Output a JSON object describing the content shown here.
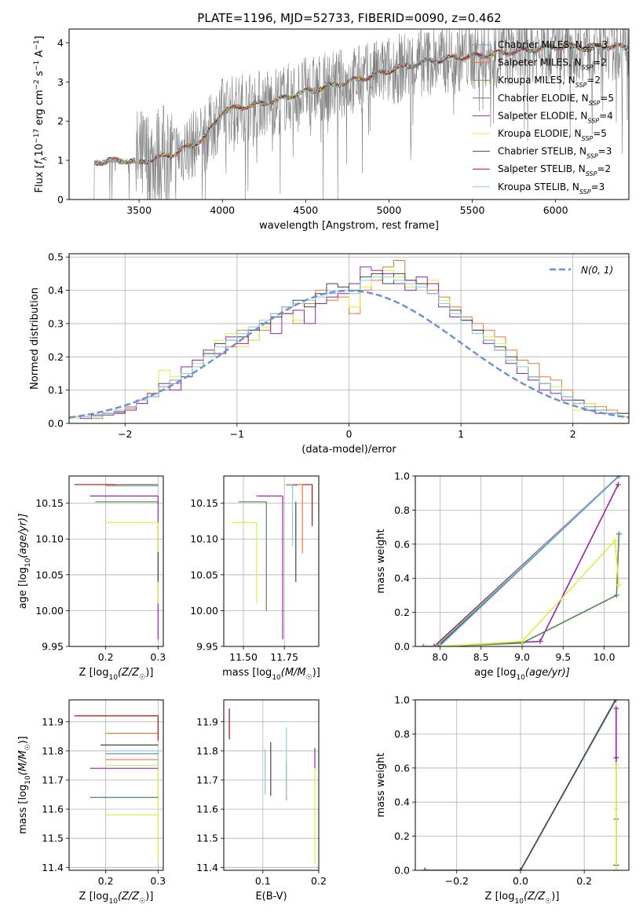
{
  "figure_title": "PLATE=1196, MJD=52733, FIBERID=0090, z=0.462",
  "colors": {
    "Chabrier MILES": "#6699cc",
    "Salpeter MILES": "#ee7733",
    "Kroupa MILES": "#aa8822",
    "Chabrier ELODIE": "#558855",
    "Salpeter ELODIE": "#9922aa",
    "Kroupa ELODIE": "#ddee44",
    "Chabrier STELIB": "#444444",
    "Salpeter STELIB": "#aa1111",
    "Kroupa STELIB": "#88ccdd",
    "data": "#7f7f7f",
    "normal": "#6a8fd8"
  },
  "chart_data": [
    {
      "id": "spectrum",
      "type": "line",
      "xlabel": "wavelength [Angstrom, rest frame]",
      "ylabel_parts": [
        "Flux [",
        "f",
        "λ",
        "10",
        "−17",
        " erg cm",
        "−2",
        " s",
        "−1",
        " A",
        "−1",
        "]"
      ],
      "xlim": [
        3080,
        6440
      ],
      "ylim": [
        0,
        4.35
      ],
      "xticks": [
        3500,
        4000,
        4500,
        5000,
        5500,
        6000
      ],
      "yticks": [
        0,
        1,
        2,
        3,
        4
      ],
      "continuum": {
        "x": [
          3230,
          3400,
          3500,
          3600,
          3700,
          3800,
          3900,
          4000,
          4100,
          4300,
          4500,
          4700,
          4900,
          5000,
          5200,
          5400,
          5600,
          5800,
          6000,
          6200
        ],
        "y": [
          0.95,
          1.0,
          0.95,
          1.05,
          1.15,
          1.35,
          1.6,
          2.25,
          2.35,
          2.5,
          2.75,
          2.95,
          3.15,
          3.3,
          3.5,
          3.62,
          3.7,
          3.8,
          3.9,
          3.9
        ]
      },
      "data_start": 3210,
      "series": [
        {
          "name": "Chabrier MILES",
          "nssp": "3"
        },
        {
          "name": "Salpeter MILES",
          "nssp": "2"
        },
        {
          "name": "Kroupa MILES",
          "nssp": "2"
        },
        {
          "name": "Chabrier ELODIE",
          "nssp": "5"
        },
        {
          "name": "Salpeter ELODIE",
          "nssp": "4"
        },
        {
          "name": "Kroupa ELODIE",
          "nssp": "5"
        },
        {
          "name": "Chabrier STELIB",
          "nssp": "3"
        },
        {
          "name": "Salpeter STELIB",
          "nssp": "2"
        },
        {
          "name": "Kroupa STELIB",
          "nssp": "3"
        }
      ],
      "legend": "upper right"
    },
    {
      "id": "residuals",
      "type": "line",
      "xlabel": "(data-model)/error",
      "ylabel": "Normed distribution",
      "xlim": [
        -2.5,
        2.5
      ],
      "ylim": [
        0,
        0.51
      ],
      "xticks": [
        -2,
        -1,
        0,
        1,
        2
      ],
      "yticks": [
        0.0,
        0.1,
        0.2,
        0.3,
        0.4,
        0.5
      ],
      "bin_width": 0.1,
      "legend_label": "N(0, 1)",
      "legend": "upper right",
      "histograms": [
        {
          "model": "Salpeter MILES",
          "values": [
            0.02,
            0.02,
            0.015,
            0.03,
            0.03,
            0.045,
            0.06,
            0.08,
            0.1,
            0.12,
            0.15,
            0.17,
            0.2,
            0.21,
            0.23,
            0.28,
            0.25,
            0.28,
            0.33,
            0.33,
            0.3,
            0.36,
            0.4,
            0.37,
            0.38,
            0.33,
            0.4,
            0.43,
            0.47,
            0.49,
            0.43,
            0.42,
            0.4,
            0.38,
            0.35,
            0.32,
            0.3,
            0.28,
            0.26,
            0.22,
            0.19,
            0.18,
            0.14,
            0.13,
            0.1,
            0.07,
            0.06,
            0.05,
            0.04,
            0.03
          ]
        },
        {
          "model": "Kroupa ELODIE",
          "values": [
            0.015,
            0.025,
            0.02,
            0.03,
            0.04,
            0.05,
            0.07,
            0.1,
            0.16,
            0.14,
            0.15,
            0.18,
            0.2,
            0.25,
            0.27,
            0.23,
            0.25,
            0.29,
            0.32,
            0.34,
            0.31,
            0.37,
            0.38,
            0.39,
            0.4,
            0.35,
            0.41,
            0.45,
            0.46,
            0.44,
            0.41,
            0.42,
            0.43,
            0.37,
            0.34,
            0.3,
            0.27,
            0.26,
            0.24,
            0.2,
            0.17,
            0.13,
            0.12,
            0.11,
            0.08,
            0.04,
            0.06,
            0.04,
            0.03,
            0.02
          ]
        },
        {
          "model": "Salpeter ELODIE",
          "values": [
            0.02,
            0.015,
            0.02,
            0.025,
            0.03,
            0.04,
            0.06,
            0.09,
            0.12,
            0.1,
            0.17,
            0.19,
            0.22,
            0.21,
            0.26,
            0.24,
            0.28,
            0.3,
            0.27,
            0.33,
            0.34,
            0.3,
            0.36,
            0.38,
            0.39,
            0.42,
            0.47,
            0.46,
            0.45,
            0.42,
            0.4,
            0.44,
            0.42,
            0.35,
            0.32,
            0.31,
            0.28,
            0.24,
            0.22,
            0.18,
            0.15,
            0.13,
            0.1,
            0.09,
            0.07,
            0.06,
            0.04,
            0.03,
            0.03,
            0.02
          ]
        },
        {
          "model": "Chabrier STELIB",
          "values": [
            0.02,
            0.02,
            0.025,
            0.03,
            0.035,
            0.05,
            0.07,
            0.08,
            0.11,
            0.13,
            0.14,
            0.17,
            0.21,
            0.24,
            0.25,
            0.26,
            0.28,
            0.3,
            0.32,
            0.35,
            0.37,
            0.35,
            0.39,
            0.42,
            0.41,
            0.4,
            0.44,
            0.45,
            0.42,
            0.45,
            0.43,
            0.42,
            0.39,
            0.36,
            0.34,
            0.31,
            0.28,
            0.25,
            0.23,
            0.2,
            0.17,
            0.14,
            0.12,
            0.1,
            0.08,
            0.07,
            0.05,
            0.04,
            0.03,
            0.03
          ]
        },
        {
          "model": "Kroupa STELIB",
          "values": [
            0.02,
            0.02,
            0.02,
            0.03,
            0.04,
            0.05,
            0.07,
            0.08,
            0.11,
            0.13,
            0.15,
            0.17,
            0.2,
            0.23,
            0.25,
            0.27,
            0.29,
            0.31,
            0.33,
            0.35,
            0.36,
            0.37,
            0.38,
            0.39,
            0.4,
            0.39,
            0.43,
            0.44,
            0.44,
            0.43,
            0.42,
            0.41,
            0.39,
            0.36,
            0.33,
            0.3,
            0.27,
            0.25,
            0.22,
            0.19,
            0.17,
            0.14,
            0.12,
            0.1,
            0.08,
            0.06,
            0.05,
            0.04,
            0.03,
            0.02
          ]
        }
      ]
    },
    {
      "id": "age-vs-Z",
      "type": "scatter",
      "xlabel_parts": [
        "Z [log",
        "10",
        "(Z/Z",
        "☉",
        ")]"
      ],
      "ylabel_parts": [
        "age  [log",
        "10",
        "(age/yr)]"
      ],
      "xlim": [
        0.13,
        0.31
      ],
      "ylim": [
        9.95,
        10.188
      ],
      "xticks": [
        0.2,
        0.3
      ],
      "yticks": [
        9.95,
        10.0,
        10.05,
        10.1,
        10.15
      ],
      "points": [
        {
          "model": "Salpeter STELIB",
          "x": 0.3,
          "y": 10.176,
          "xlow": 0.14,
          "ylow": 10.176
        },
        {
          "model": "Chabrier MILES",
          "x": 0.3,
          "y": 10.176,
          "xlow": 0.22,
          "ylow": 10.176
        },
        {
          "model": "Salpeter MILES",
          "x": 0.3,
          "y": 10.175,
          "xlow": 0.2,
          "ylow": 10.175
        },
        {
          "model": "Kroupa STELIB",
          "x": 0.3,
          "y": 10.174,
          "xlow": 0.2,
          "ylow": 10.174
        },
        {
          "model": "Salpeter ELODIE",
          "x": 0.3,
          "y": 10.16,
          "xlow": 0.17,
          "ylow": 9.96
        },
        {
          "model": "Chabrier ELODIE",
          "x": 0.3,
          "y": 10.152,
          "xlow": 0.18,
          "ylow": 10.152
        },
        {
          "model": "Kroupa ELODIE",
          "x": 0.3,
          "y": 10.123,
          "xlow": 0.2,
          "ylow": 10.01
        },
        {
          "model": "Chabrier STELIB",
          "x": 0.3,
          "y": 10.082,
          "xlow": 0.3,
          "ylow": 10.04
        }
      ]
    },
    {
      "id": "age-vs-mass",
      "type": "scatter",
      "xlabel_parts": [
        "mass [log",
        "10",
        "(M/M",
        "☉",
        ")]"
      ],
      "xlim": [
        11.38,
        11.96
      ],
      "ylim": [
        9.95,
        10.188
      ],
      "xticks": [
        11.5,
        11.75
      ],
      "yticks": [
        9.95,
        10.0,
        10.05,
        10.1,
        10.15
      ],
      "points": [
        {
          "model": "Salpeter STELIB",
          "x": 11.92,
          "y": 10.176,
          "xlow": 11.8,
          "ylow": 10.118
        },
        {
          "model": "Kroupa MILES",
          "x": 11.74,
          "y": 10.176,
          "xlow": 11.74,
          "ylow": 10.176
        },
        {
          "model": "Salpeter MILES",
          "x": 11.86,
          "y": 10.176,
          "xlow": 11.76,
          "ylow": 10.08
        },
        {
          "model": "Chabrier MILES",
          "x": 11.83,
          "y": 10.175,
          "xlow": 11.76,
          "ylow": 10.176
        },
        {
          "model": "Kroupa STELIB",
          "x": 11.8,
          "y": 10.175,
          "xlow": 11.76,
          "ylow": 10.09
        },
        {
          "model": "Salpeter ELODIE",
          "x": 11.74,
          "y": 10.16,
          "xlow": 11.58,
          "ylow": 9.96
        },
        {
          "model": "Chabrier ELODIE",
          "x": 11.64,
          "y": 10.152,
          "xlow": 11.47,
          "ylow": 10.0
        },
        {
          "model": "Chabrier STELIB",
          "x": 11.82,
          "y": 10.152,
          "xlow": 11.82,
          "ylow": 10.04
        },
        {
          "model": "Kroupa ELODIE",
          "x": 11.58,
          "y": 10.123,
          "xlow": 11.43,
          "ylow": 10.01
        }
      ]
    },
    {
      "id": "mass-weight-vs-age",
      "type": "line",
      "xlabel_parts": [
        "age  [log",
        "10",
        "(age/yr)]"
      ],
      "ylabel": "mass weight",
      "xlim": [
        7.7,
        10.3
      ],
      "ylim": [
        0.0,
        1.0
      ],
      "xticks": [
        8.0,
        8.5,
        9.0,
        9.5,
        10.0
      ],
      "yticks": [
        0.0,
        0.2,
        0.4,
        0.6,
        0.8,
        1.0
      ],
      "series": [
        {
          "model": "Salpeter STELIB",
          "x": [
            7.93,
            10.18
          ],
          "y": [
            0.0,
            1.0
          ]
        },
        {
          "model": "Chabrier STELIB",
          "x": [
            7.8,
            7.97,
            10.18
          ],
          "y": [
            0.0,
            0.0,
            1.0
          ]
        },
        {
          "model": "Kroupa STELIB",
          "x": [
            7.8,
            7.95,
            10.18
          ],
          "y": [
            0.0,
            0.0,
            1.0
          ]
        },
        {
          "model": "Chabrier MILES",
          "x": [
            7.8,
            7.99,
            10.18
          ],
          "y": [
            0.0,
            0.0,
            1.0
          ]
        },
        {
          "model": "Salpeter ELODIE",
          "x": [
            8.0,
            9.22,
            10.17
          ],
          "y": [
            0.0,
            0.03,
            0.95
          ]
        },
        {
          "model": "Chabrier ELODIE",
          "x": [
            8.0,
            9.0,
            10.15,
            10.18
          ],
          "y": [
            0.0,
            0.02,
            0.3,
            0.66
          ]
        },
        {
          "model": "Kroupa ELODIE",
          "x": [
            8.0,
            9.0,
            10.13,
            10.18
          ],
          "y": [
            0.0,
            0.03,
            0.62,
            0.36
          ]
        }
      ]
    },
    {
      "id": "mass-vs-Z",
      "type": "scatter",
      "xlabel_parts": [
        "Z [log",
        "10",
        "(Z/Z",
        "☉",
        ")]"
      ],
      "ylabel_parts": [
        "mass [log",
        "10",
        "(M/M",
        "☉",
        ")]"
      ],
      "xlim": [
        0.13,
        0.31
      ],
      "ylim": [
        11.39,
        11.975
      ],
      "xticks": [
        0.1,
        0.2,
        0.3
      ],
      "yticks": [
        11.4,
        11.5,
        11.6,
        11.7,
        11.8,
        11.9
      ],
      "points": [
        {
          "model": "Salpeter STELIB",
          "x": 0.3,
          "y": 11.92,
          "xlow": 0.14,
          "ylow": 11.835
        },
        {
          "model": "Salpeter MILES",
          "x": 0.3,
          "y": 11.86,
          "xlow": 0.2,
          "ylow": 11.86
        },
        {
          "model": "Chabrier STELIB",
          "x": 0.3,
          "y": 11.82,
          "xlow": 0.19,
          "ylow": 11.82
        },
        {
          "model": "Kroupa STELIB",
          "x": 0.3,
          "y": 11.8,
          "xlow": 0.2,
          "ylow": 11.65
        },
        {
          "model": "Chabrier MILES",
          "x": 0.3,
          "y": 11.79,
          "xlow": 0.2,
          "ylow": 11.79
        },
        {
          "model": "Salpeter MILES",
          "x": 0.3,
          "y": 11.77,
          "xlow": 0.2,
          "ylow": 11.77
        },
        {
          "model": "Kroupa ELODIE",
          "x": 0.3,
          "y": 11.75,
          "xlow": 0.2,
          "ylow": 11.42
        },
        {
          "model": "Salpeter ELODIE",
          "x": 0.3,
          "y": 11.74,
          "xlow": 0.17,
          "ylow": 11.74
        },
        {
          "model": "Chabrier ELODIE",
          "x": 0.3,
          "y": 11.64,
          "xlow": 0.17,
          "ylow": 11.64
        },
        {
          "model": "Kroupa ELODIE",
          "x": 0.3,
          "y": 11.58,
          "xlow": 0.2,
          "ylow": 11.58
        }
      ]
    },
    {
      "id": "mass-vs-EBV",
      "type": "scatter",
      "xlabel": "E(B-V)",
      "xlim": [
        0.03,
        0.2
      ],
      "ylim": [
        11.39,
        11.975
      ],
      "xticks": [
        0.1,
        0.2
      ],
      "yticks": [
        11.4,
        11.5,
        11.6,
        11.7,
        11.8,
        11.9
      ],
      "bars": [
        {
          "model": "Salpeter STELIB",
          "x": 0.04,
          "ylow": 11.84,
          "yhigh": 11.945
        },
        {
          "model": "Kroupa STELIB",
          "x": 0.104,
          "ylow": 11.65,
          "yhigh": 11.805
        },
        {
          "model": "Chabrier STELIB",
          "x": 0.114,
          "ylow": 11.645,
          "yhigh": 11.83
        },
        {
          "model": "Salpeter MILES",
          "x": 0.142,
          "ylow": 11.63,
          "yhigh": 11.76
        },
        {
          "model": "Kroupa STELIB",
          "x": 0.142,
          "ylow": 11.64,
          "yhigh": 11.88
        },
        {
          "model": "Salpeter ELODIE",
          "x": 0.193,
          "ylow": 11.74,
          "yhigh": 11.81
        },
        {
          "model": "Kroupa ELODIE",
          "x": 0.193,
          "ylow": 11.41,
          "yhigh": 11.74
        }
      ]
    },
    {
      "id": "mass-weight-vs-Z",
      "type": "line",
      "xlabel_parts": [
        "Z [log",
        "10",
        "(Z/Z",
        "☉",
        ")]"
      ],
      "ylabel": "mass weight",
      "xlim": [
        -0.33,
        0.34
      ],
      "ylim": [
        0.0,
        1.0
      ],
      "xticks": [
        -0.2,
        0.0,
        0.2
      ],
      "yticks": [
        0.0,
        0.2,
        0.4,
        0.6,
        0.8,
        1.0
      ],
      "series": [
        {
          "model": "Chabrier MILES",
          "x": [
            -0.3,
            0.0,
            0.3
          ],
          "y": [
            0.0,
            0.0,
            1.0
          ]
        },
        {
          "model": "Kroupa STELIB",
          "x": [
            -0.3,
            0.0,
            0.3
          ],
          "y": [
            0.0,
            0.0,
            1.0
          ]
        },
        {
          "model": "Chabrier STELIB",
          "x": [
            -0.3,
            0.0,
            0.298
          ],
          "y": [
            0.0,
            0.0,
            1.0
          ]
        },
        {
          "model": "Salpeter ELODIE",
          "x": [
            0.3,
            0.3,
            0.3
          ],
          "y": [
            0.03,
            0.66,
            0.95
          ]
        },
        {
          "model": "Chabrier ELODIE",
          "x": [
            0.3,
            0.3
          ],
          "y": [
            0.0,
            0.3
          ]
        },
        {
          "model": "Kroupa ELODIE",
          "x": [
            0.3,
            0.3,
            0.3
          ],
          "y": [
            0.0,
            0.36,
            0.62
          ]
        }
      ]
    }
  ]
}
